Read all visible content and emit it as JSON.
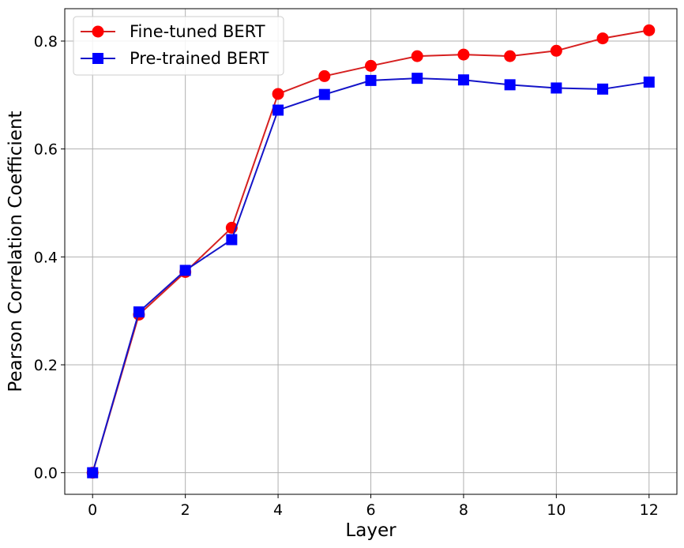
{
  "chart_data": {
    "type": "line",
    "title": "",
    "xlabel": "Layer",
    "ylabel": "Pearson Correlation Coefficient",
    "xlim": [
      -0.6,
      12.6
    ],
    "ylim": [
      -0.04,
      0.86
    ],
    "xticks": [
      0,
      2,
      4,
      6,
      8,
      10,
      12
    ],
    "yticks": [
      0.0,
      0.2,
      0.4,
      0.6,
      0.8
    ],
    "grid": true,
    "legend_position": "top-left",
    "x": [
      0,
      1,
      2,
      3,
      4,
      5,
      6,
      7,
      8,
      9,
      10,
      11,
      12
    ],
    "series": [
      {
        "name": "Fine-tuned BERT",
        "color": "#ff0000",
        "line_color": "#d62020",
        "marker": "circle",
        "values": [
          0.0,
          0.293,
          0.372,
          0.454,
          0.702,
          0.735,
          0.754,
          0.772,
          0.775,
          0.772,
          0.782,
          0.805,
          0.82
        ]
      },
      {
        "name": "Pre-trained BERT",
        "color": "#0000ff",
        "line_color": "#1414c8",
        "marker": "square",
        "values": [
          0.0,
          0.298,
          0.375,
          0.432,
          0.672,
          0.701,
          0.727,
          0.731,
          0.728,
          0.719,
          0.713,
          0.711,
          0.724
        ]
      }
    ]
  }
}
